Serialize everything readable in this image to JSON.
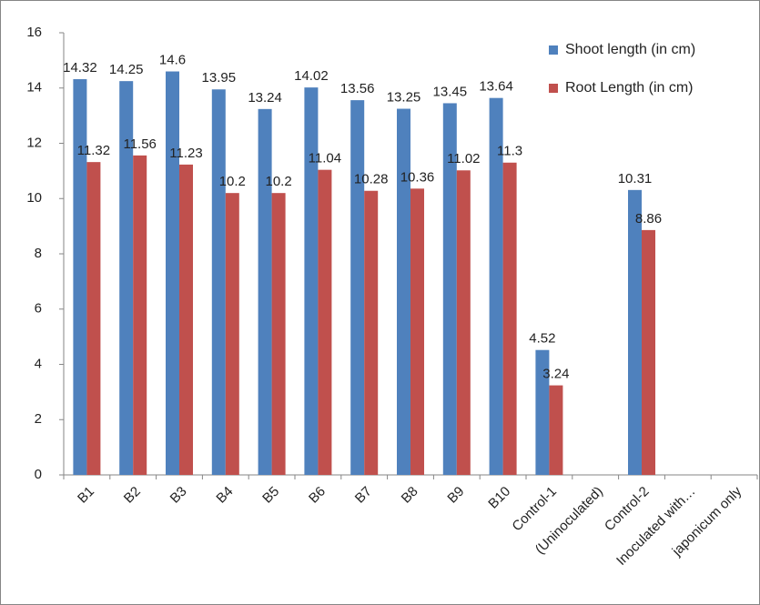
{
  "chart_data": {
    "type": "bar",
    "categories": [
      "B1",
      "B2",
      "B3",
      "B4",
      "B5",
      "B6",
      "B7",
      "B8",
      "B9",
      "B10",
      "Control-1",
      "(Uninoculated)",
      "Control-2",
      "Inoculated with…",
      "japonicum only"
    ],
    "series": [
      {
        "name": "Shoot length (in cm)",
        "color": "#4f81bd",
        "values": [
          14.32,
          14.25,
          14.6,
          13.95,
          13.24,
          14.02,
          13.56,
          13.25,
          13.45,
          13.64,
          4.52,
          null,
          10.31,
          null,
          null
        ]
      },
      {
        "name": "Root Length (in cm)",
        "color": "#c0504d",
        "values": [
          11.32,
          11.56,
          11.23,
          10.2,
          10.2,
          11.04,
          10.28,
          10.36,
          11.02,
          11.3,
          3.24,
          null,
          8.86,
          null,
          null
        ]
      }
    ],
    "ylim": [
      0,
      16
    ],
    "yticks": [
      0,
      2,
      4,
      6,
      8,
      10,
      12,
      14,
      16
    ],
    "legend": "right",
    "grid": false
  }
}
